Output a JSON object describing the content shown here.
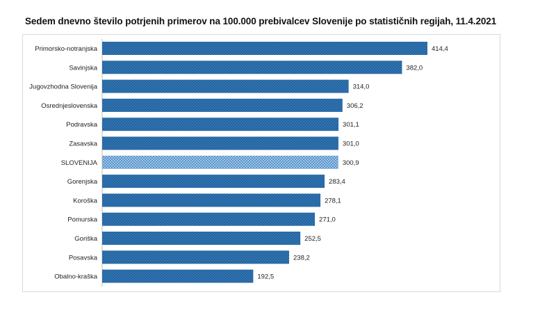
{
  "chart_data": {
    "type": "bar",
    "orientation": "horizontal",
    "title": "Sedem dnevno število potrjenih primerov na 100.000  prebivalcev Slovenije po statističnih regijah, 11.4.2021",
    "categories": [
      "Primorsko-notranjska",
      "Savinjska",
      "Jugovzhodna Slovenija",
      "Osrednjeslovenska",
      "Podravska",
      "Zasavska",
      "SLOVENIJA",
      "Gorenjska",
      "Koroška",
      "Pomurska",
      "Goriška",
      "Posavska",
      "Obalno-kraška"
    ],
    "values": [
      414.4,
      382.0,
      314.0,
      306.2,
      301.1,
      301.0,
      300.9,
      283.4,
      278.1,
      271.0,
      252.5,
      238.2,
      192.5
    ],
    "value_labels": [
      "414,4",
      "382,0",
      "314,0",
      "306,2",
      "301,1",
      "301,0",
      "300,9",
      "283,4",
      "278,1",
      "271,0",
      "252,5",
      "238,2",
      "192,5"
    ],
    "highlight_category": "SLOVENIJA",
    "xlim": [
      0,
      460
    ],
    "grid": false,
    "legend": "none",
    "colors": {
      "bar": "#2e75b6",
      "bar_dots": "#1f4e79",
      "highlight": "#9dc3e6",
      "highlight_dots": "#2e75b6"
    }
  }
}
